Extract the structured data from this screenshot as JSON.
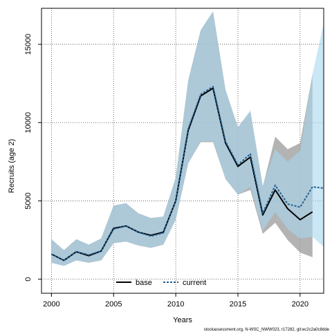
{
  "chart_data": {
    "type": "line",
    "xlabel": "Years",
    "ylabel": "Recruits (age 2)",
    "xlim": [
      1999.2,
      2021.9
    ],
    "ylim": [
      -900,
      17300
    ],
    "x_ticks": [
      2000,
      2005,
      2010,
      2015,
      2020
    ],
    "y_ticks": [
      0,
      5000,
      10000,
      15000
    ],
    "grid": true,
    "legend_placement": "bottom-center",
    "series": [
      {
        "name": "base",
        "color": "#000000",
        "line_style": "solid",
        "band_color": "#999999",
        "x": [
          2000,
          2001,
          2002,
          2003,
          2004,
          2005,
          2006,
          2007,
          2008,
          2009,
          2010,
          2011,
          2012,
          2013,
          2014,
          2015,
          2016,
          2017,
          2018,
          2019,
          2020,
          2021
        ],
        "values": [
          1600,
          1200,
          1750,
          1500,
          1800,
          3250,
          3400,
          3000,
          2800,
          3000,
          5000,
          9500,
          11700,
          12200,
          8700,
          7200,
          7800,
          4100,
          5700,
          4500,
          3800,
          4300
        ],
        "lower": [
          1050,
          850,
          1200,
          1050,
          1200,
          2300,
          2400,
          2150,
          2000,
          2200,
          3800,
          7400,
          8750,
          8750,
          6400,
          5400,
          5700,
          2900,
          3600,
          2500,
          1700,
          1400
        ],
        "upper": [
          2550,
          1850,
          2550,
          2200,
          2600,
          4700,
          4850,
          4200,
          3900,
          4000,
          6500,
          12700,
          15900,
          17100,
          12100,
          9700,
          10700,
          5900,
          9100,
          8300,
          8700,
          13100
        ]
      },
      {
        "name": "current",
        "color": "#1f5f8f",
        "line_style": "dashed",
        "band_color": "#a9d6ee",
        "x": [
          2000,
          2001,
          2002,
          2003,
          2004,
          2005,
          2006,
          2007,
          2008,
          2009,
          2010,
          2011,
          2012,
          2013,
          2014,
          2015,
          2016,
          2017,
          2018,
          2019,
          2020,
          2021,
          2022
        ],
        "values": [
          1600,
          1200,
          1750,
          1550,
          1800,
          3200,
          3400,
          3000,
          2750,
          2950,
          5000,
          9600,
          11800,
          12300,
          8800,
          7300,
          8000,
          4200,
          6000,
          4800,
          4600,
          5900,
          5800
        ],
        "lower": [
          1050,
          850,
          1200,
          1050,
          1200,
          2300,
          2400,
          2150,
          2000,
          2200,
          3800,
          7400,
          8800,
          8800,
          6400,
          5400,
          5900,
          3100,
          4300,
          3200,
          2600,
          2700,
          2000
        ],
        "upper": [
          2550,
          1850,
          2550,
          2200,
          2600,
          4700,
          4850,
          4200,
          3900,
          4000,
          6500,
          12700,
          15900,
          17100,
          12100,
          9700,
          10800,
          6000,
          8300,
          7500,
          8200,
          13100,
          16700
        ]
      }
    ]
  },
  "footer": "stockassessment.org, N-WSC_NWW023, r17282, git:ec2c2a0c8dde"
}
